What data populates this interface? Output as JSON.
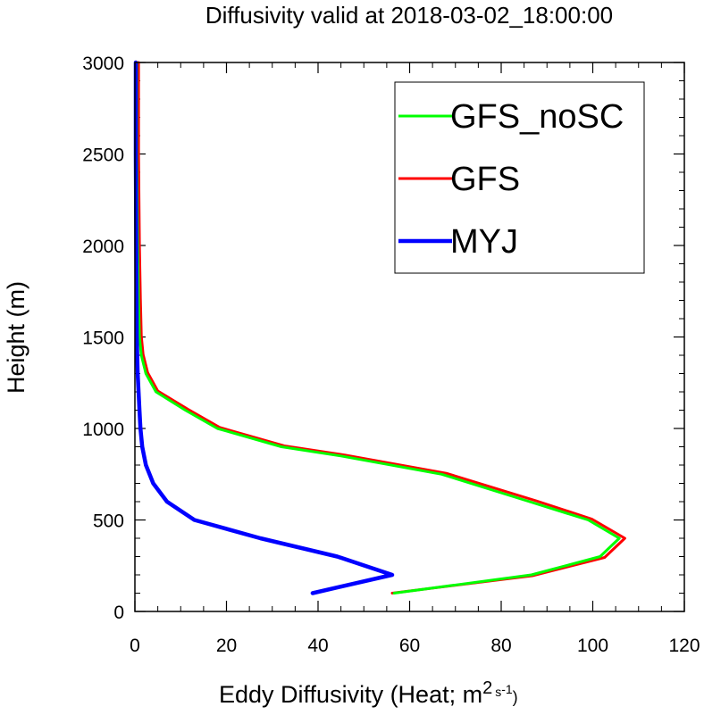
{
  "chart_data": {
    "type": "line",
    "title": "Diffusivity valid at 2018-03-02_18:00:00",
    "xlabel": {
      "main": "Eddy Diffusivity (Heat; m",
      "sup1": "2",
      "mid": "s",
      "sup2": "-1",
      "end": ")"
    },
    "ylabel": "Height (m)",
    "xlim": [
      0,
      120
    ],
    "ylim": [
      0,
      3000
    ],
    "xticks": [
      0,
      20,
      40,
      60,
      80,
      100,
      120
    ],
    "yticks": [
      0,
      500,
      1000,
      1500,
      2000,
      2500,
      3000
    ],
    "legend_position": "top-right",
    "grid": false,
    "series": [
      {
        "name": "GFS_noSC",
        "color": "#00ff00",
        "points": [
          [
            56.6,
            100
          ],
          [
            86.6,
            200
          ],
          [
            101.6,
            300
          ],
          [
            105.8,
            400
          ],
          [
            99.0,
            500
          ],
          [
            86.2,
            600
          ],
          [
            67.0,
            750
          ],
          [
            45.0,
            850
          ],
          [
            32.0,
            900
          ],
          [
            18.0,
            1000
          ],
          [
            11.0,
            1100
          ],
          [
            4.6,
            1200
          ],
          [
            2.4,
            1300
          ],
          [
            1.4,
            1400
          ],
          [
            1.0,
            1500
          ],
          [
            0.8,
            1700
          ],
          [
            0.6,
            2000
          ],
          [
            0.4,
            2500
          ],
          [
            0.4,
            3000
          ]
        ]
      },
      {
        "name": "GFS",
        "color": "#ff0000",
        "points": [
          [
            56.2,
            100
          ],
          [
            86.8,
            195
          ],
          [
            102.6,
            295
          ],
          [
            107.0,
            400
          ],
          [
            99.8,
            505
          ],
          [
            87.6,
            605
          ],
          [
            68.0,
            755
          ],
          [
            45.8,
            855
          ],
          [
            32.6,
            905
          ],
          [
            18.6,
            1005
          ],
          [
            11.6,
            1105
          ],
          [
            5.0,
            1205
          ],
          [
            2.8,
            1305
          ],
          [
            1.8,
            1405
          ],
          [
            1.4,
            1505
          ],
          [
            1.2,
            1705
          ],
          [
            1.0,
            2005
          ],
          [
            0.8,
            2505
          ],
          [
            0.8,
            3000
          ]
        ]
      },
      {
        "name": "MYJ",
        "color": "#0000ff",
        "points": [
          [
            38.8,
            100
          ],
          [
            56.2,
            200
          ],
          [
            44.2,
            300
          ],
          [
            27.4,
            400
          ],
          [
            13.0,
            500
          ],
          [
            7.0,
            600
          ],
          [
            4.0,
            700
          ],
          [
            2.4,
            800
          ],
          [
            1.6,
            900
          ],
          [
            1.2,
            1000
          ],
          [
            1.0,
            1100
          ],
          [
            0.8,
            1200
          ],
          [
            0.6,
            1300
          ],
          [
            0.4,
            1500
          ],
          [
            0.3,
            2000
          ],
          [
            0.2,
            2500
          ],
          [
            0.2,
            3000
          ]
        ]
      }
    ]
  }
}
